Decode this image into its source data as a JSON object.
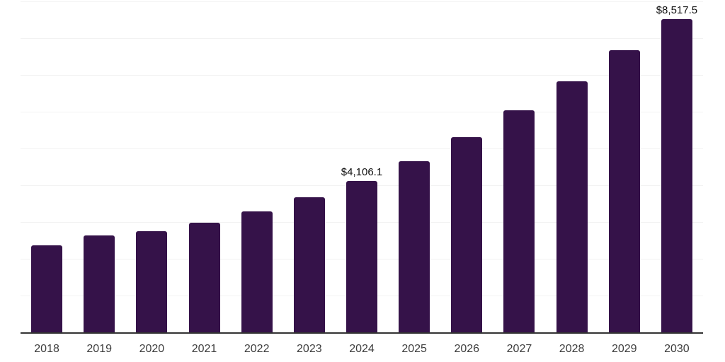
{
  "chart_data": {
    "type": "bar",
    "title": "",
    "xlabel": "",
    "ylabel": "",
    "categories": [
      "2018",
      "2019",
      "2020",
      "2021",
      "2022",
      "2023",
      "2024",
      "2025",
      "2026",
      "2027",
      "2028",
      "2029",
      "2030"
    ],
    "values": [
      2365,
      2635,
      2750,
      2990,
      3295,
      3675,
      4106.1,
      4650,
      5300,
      6030,
      6835,
      7665,
      8517.5
    ],
    "value_labels": [
      "",
      "",
      "",
      "",
      "",
      "",
      "$4,106.1",
      "",
      "",
      "",
      "",
      "",
      "$8,517.5"
    ],
    "ylim": [
      0,
      9000
    ],
    "gridline_interval": 1000,
    "grid_on": true,
    "legend_position": "none",
    "colors": {
      "bar": "#351249",
      "axis_line": "#333333",
      "gridline": "#f2f2f2",
      "x_tick_label": "#3d3d3d",
      "value_label": "#111111",
      "background": "#ffffff"
    }
  }
}
